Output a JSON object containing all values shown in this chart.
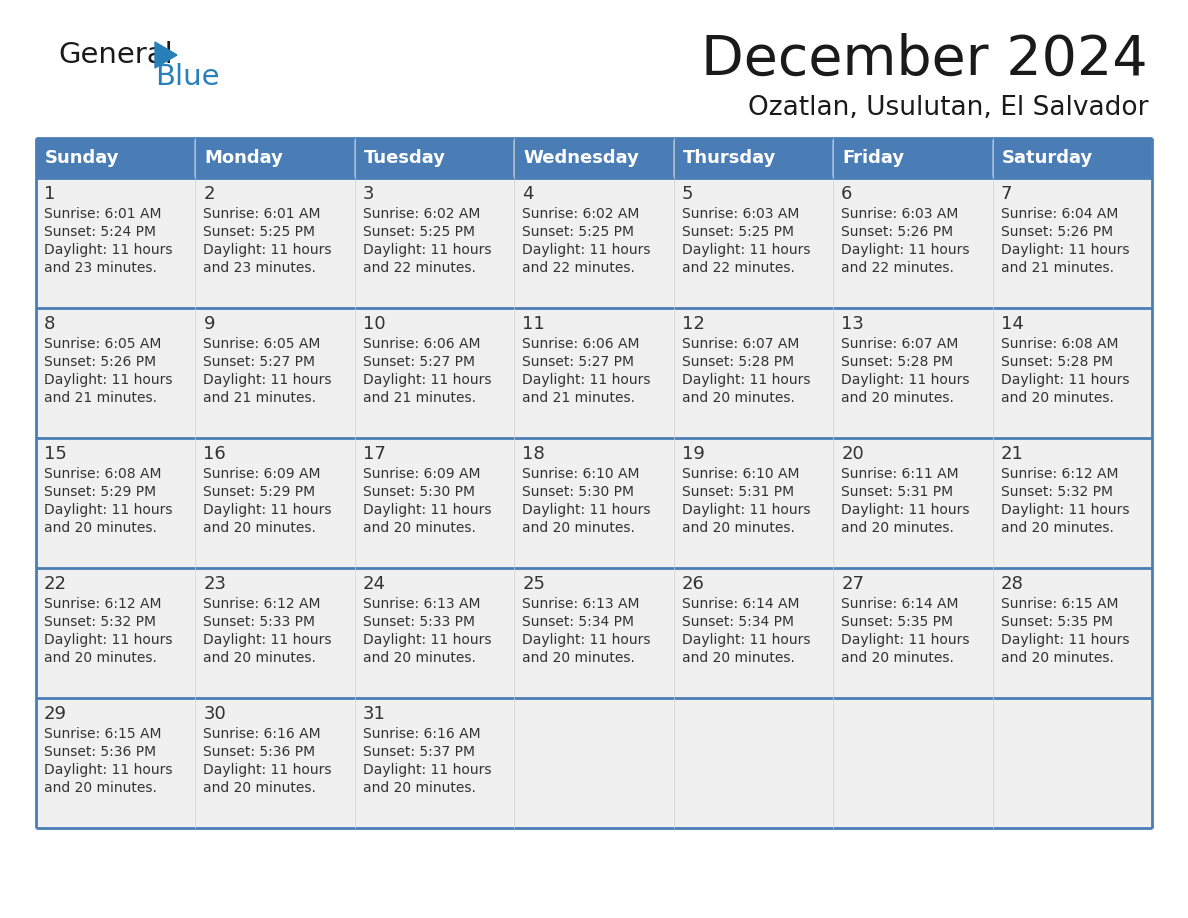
{
  "title": "December 2024",
  "subtitle": "Ozatlan, Usulutan, El Salvador",
  "header_bg": "#4A7DB5",
  "header_text_color": "#FFFFFF",
  "cell_bg": "#F0F0F0",
  "border_color": "#4A7DB5",
  "text_color": "#333333",
  "days_of_week": [
    "Sunday",
    "Monday",
    "Tuesday",
    "Wednesday",
    "Thursday",
    "Friday",
    "Saturday"
  ],
  "calendar_data": [
    [
      {
        "day": 1,
        "sunrise": "6:01 AM",
        "sunset": "5:24 PM",
        "daylight": "11 hours and 23 minutes"
      },
      {
        "day": 2,
        "sunrise": "6:01 AM",
        "sunset": "5:25 PM",
        "daylight": "11 hours and 23 minutes"
      },
      {
        "day": 3,
        "sunrise": "6:02 AM",
        "sunset": "5:25 PM",
        "daylight": "11 hours and 22 minutes"
      },
      {
        "day": 4,
        "sunrise": "6:02 AM",
        "sunset": "5:25 PM",
        "daylight": "11 hours and 22 minutes"
      },
      {
        "day": 5,
        "sunrise": "6:03 AM",
        "sunset": "5:25 PM",
        "daylight": "11 hours and 22 minutes"
      },
      {
        "day": 6,
        "sunrise": "6:03 AM",
        "sunset": "5:26 PM",
        "daylight": "11 hours and 22 minutes"
      },
      {
        "day": 7,
        "sunrise": "6:04 AM",
        "sunset": "5:26 PM",
        "daylight": "11 hours and 21 minutes"
      }
    ],
    [
      {
        "day": 8,
        "sunrise": "6:05 AM",
        "sunset": "5:26 PM",
        "daylight": "11 hours and 21 minutes"
      },
      {
        "day": 9,
        "sunrise": "6:05 AM",
        "sunset": "5:27 PM",
        "daylight": "11 hours and 21 minutes"
      },
      {
        "day": 10,
        "sunrise": "6:06 AM",
        "sunset": "5:27 PM",
        "daylight": "11 hours and 21 minutes"
      },
      {
        "day": 11,
        "sunrise": "6:06 AM",
        "sunset": "5:27 PM",
        "daylight": "11 hours and 21 minutes"
      },
      {
        "day": 12,
        "sunrise": "6:07 AM",
        "sunset": "5:28 PM",
        "daylight": "11 hours and 20 minutes"
      },
      {
        "day": 13,
        "sunrise": "6:07 AM",
        "sunset": "5:28 PM",
        "daylight": "11 hours and 20 minutes"
      },
      {
        "day": 14,
        "sunrise": "6:08 AM",
        "sunset": "5:28 PM",
        "daylight": "11 hours and 20 minutes"
      }
    ],
    [
      {
        "day": 15,
        "sunrise": "6:08 AM",
        "sunset": "5:29 PM",
        "daylight": "11 hours and 20 minutes"
      },
      {
        "day": 16,
        "sunrise": "6:09 AM",
        "sunset": "5:29 PM",
        "daylight": "11 hours and 20 minutes"
      },
      {
        "day": 17,
        "sunrise": "6:09 AM",
        "sunset": "5:30 PM",
        "daylight": "11 hours and 20 minutes"
      },
      {
        "day": 18,
        "sunrise": "6:10 AM",
        "sunset": "5:30 PM",
        "daylight": "11 hours and 20 minutes"
      },
      {
        "day": 19,
        "sunrise": "6:10 AM",
        "sunset": "5:31 PM",
        "daylight": "11 hours and 20 minutes"
      },
      {
        "day": 20,
        "sunrise": "6:11 AM",
        "sunset": "5:31 PM",
        "daylight": "11 hours and 20 minutes"
      },
      {
        "day": 21,
        "sunrise": "6:12 AM",
        "sunset": "5:32 PM",
        "daylight": "11 hours and 20 minutes"
      }
    ],
    [
      {
        "day": 22,
        "sunrise": "6:12 AM",
        "sunset": "5:32 PM",
        "daylight": "11 hours and 20 minutes"
      },
      {
        "day": 23,
        "sunrise": "6:12 AM",
        "sunset": "5:33 PM",
        "daylight": "11 hours and 20 minutes"
      },
      {
        "day": 24,
        "sunrise": "6:13 AM",
        "sunset": "5:33 PM",
        "daylight": "11 hours and 20 minutes"
      },
      {
        "day": 25,
        "sunrise": "6:13 AM",
        "sunset": "5:34 PM",
        "daylight": "11 hours and 20 minutes"
      },
      {
        "day": 26,
        "sunrise": "6:14 AM",
        "sunset": "5:34 PM",
        "daylight": "11 hours and 20 minutes"
      },
      {
        "day": 27,
        "sunrise": "6:14 AM",
        "sunset": "5:35 PM",
        "daylight": "11 hours and 20 minutes"
      },
      {
        "day": 28,
        "sunrise": "6:15 AM",
        "sunset": "5:35 PM",
        "daylight": "11 hours and 20 minutes"
      }
    ],
    [
      {
        "day": 29,
        "sunrise": "6:15 AM",
        "sunset": "5:36 PM",
        "daylight": "11 hours and 20 minutes"
      },
      {
        "day": 30,
        "sunrise": "6:16 AM",
        "sunset": "5:36 PM",
        "daylight": "11 hours and 20 minutes"
      },
      {
        "day": 31,
        "sunrise": "6:16 AM",
        "sunset": "5:37 PM",
        "daylight": "11 hours and 20 minutes"
      },
      null,
      null,
      null,
      null
    ]
  ],
  "logo_color_general": "#1a1a1a",
  "logo_color_blue": "#2980b9",
  "logo_triangle_color": "#2980b9",
  "title_color": "#1a1a1a",
  "subtitle_color": "#1a1a1a"
}
